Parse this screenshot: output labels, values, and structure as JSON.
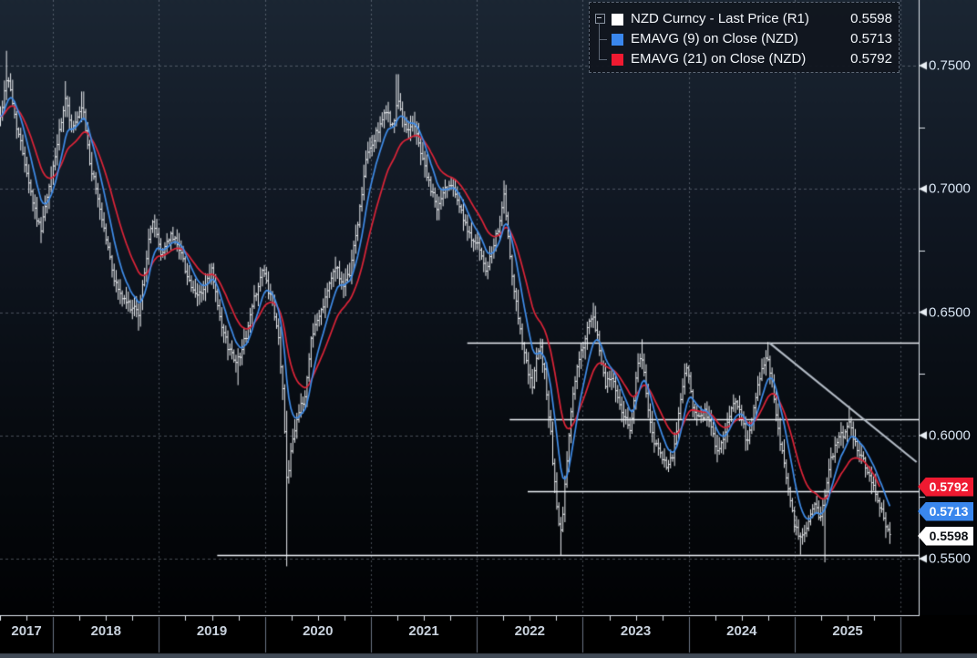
{
  "legend": {
    "items": [
      {
        "label": "NZD Curncy - Last Price (R1)",
        "value": "0.5598",
        "swatch_color": "#ffffff"
      },
      {
        "label": "EMAVG (9)  on Close (NZD)",
        "value": "0.5713",
        "swatch_color": "#3a87ed"
      },
      {
        "label": "EMAVG (21)  on Close (NZD)",
        "value": "0.5792",
        "swatch_color": "#ef1a31"
      }
    ]
  },
  "y_axis": {
    "side": "right",
    "ticks": [
      {
        "label": "0.7500",
        "value": 0.75
      },
      {
        "label": "0.7000",
        "value": 0.7
      },
      {
        "label": "0.6500",
        "value": 0.65
      },
      {
        "label": "0.6000",
        "value": 0.6
      },
      {
        "label": "0.5500",
        "value": 0.55
      }
    ],
    "minor_ticks": [
      0.725,
      0.675,
      0.625,
      0.575
    ]
  },
  "x_axis": {
    "year_labels": [
      "2017",
      "2018",
      "2019",
      "2020",
      "2021",
      "2022",
      "2023",
      "2024",
      "2025"
    ]
  },
  "price_badges": [
    {
      "text": "0.5792",
      "value": 0.5792,
      "bg": "#ef1a31",
      "fg": "#ffffff"
    },
    {
      "text": "0.5713",
      "value": 0.5713,
      "bg": "#3a87ed",
      "fg": "#ffffff"
    },
    {
      "text": "0.5598",
      "value": 0.5598,
      "bg": "#ffffff",
      "fg": "#0b0f14"
    }
  ],
  "colors": {
    "bg_top": "#1b2633",
    "bg_mid": "#101722",
    "bg_low": "#070b10",
    "bg_bottom": "#010204",
    "grid": "rgba(152,162,176,0.45)",
    "bars": "rgba(246,248,251,0.96)",
    "ema9": "#3f8ce8",
    "ema21": "#dd2438",
    "frame": "#dfe5ec",
    "annotation_line": "#eef2f7",
    "trendline": "#b2bac4",
    "band_divider": "#6b7584",
    "bottom_strip": "#414a56"
  },
  "chart_data": {
    "type": "line",
    "subtype": "weekly_ohlc_bars_with_emas",
    "title": "NZD Curncy - Last Price",
    "instrument": "NZD Curncy",
    "legend_position": "top-right",
    "grid": true,
    "x_domain": [
      2017.5,
      2026.17
    ],
    "y_domain": [
      0.5271,
      0.7766
    ],
    "series": [
      {
        "name": "NZD Curncy - Last Price (R1)",
        "type": "ohlc-bars",
        "last": 0.5598
      },
      {
        "name": "EMAVG (9) on Close (NZD)",
        "type": "ema",
        "period": 9,
        "last": 0.5713
      },
      {
        "name": "EMAVG (21) on Close (NZD)",
        "type": "ema",
        "period": 21,
        "last": 0.5792
      }
    ],
    "price_anchors": [
      [
        2017.505,
        0.729
      ],
      [
        2017.57,
        0.747
      ],
      [
        2017.65,
        0.727
      ],
      [
        2017.73,
        0.712
      ],
      [
        2017.81,
        0.695
      ],
      [
        2017.88,
        0.683
      ],
      [
        2017.96,
        0.699
      ],
      [
        2018.04,
        0.718
      ],
      [
        2018.12,
        0.736
      ],
      [
        2018.18,
        0.724
      ],
      [
        2018.23,
        0.728
      ],
      [
        2018.28,
        0.733
      ],
      [
        2018.35,
        0.71
      ],
      [
        2018.42,
        0.697
      ],
      [
        2018.5,
        0.68
      ],
      [
        2018.58,
        0.663
      ],
      [
        2018.66,
        0.655
      ],
      [
        2018.74,
        0.652
      ],
      [
        2018.81,
        0.649
      ],
      [
        2018.88,
        0.672
      ],
      [
        2018.94,
        0.688
      ],
      [
        2019.02,
        0.673
      ],
      [
        2019.1,
        0.681
      ],
      [
        2019.18,
        0.678
      ],
      [
        2019.26,
        0.666
      ],
      [
        2019.34,
        0.656
      ],
      [
        2019.42,
        0.659
      ],
      [
        2019.5,
        0.667
      ],
      [
        2019.58,
        0.645
      ],
      [
        2019.66,
        0.635
      ],
      [
        2019.74,
        0.63
      ],
      [
        2019.82,
        0.64
      ],
      [
        2019.9,
        0.656
      ],
      [
        2019.98,
        0.667
      ],
      [
        2020.06,
        0.655
      ],
      [
        2020.13,
        0.639
      ],
      [
        2020.17,
        0.617
      ],
      [
        2020.21,
        0.58
      ],
      [
        2020.25,
        0.597
      ],
      [
        2020.31,
        0.608
      ],
      [
        2020.38,
        0.616
      ],
      [
        2020.44,
        0.641
      ],
      [
        2020.52,
        0.649
      ],
      [
        2020.6,
        0.661
      ],
      [
        2020.68,
        0.669
      ],
      [
        2020.74,
        0.659
      ],
      [
        2020.8,
        0.666
      ],
      [
        2020.88,
        0.687
      ],
      [
        2020.96,
        0.713
      ],
      [
        2021.04,
        0.721
      ],
      [
        2021.1,
        0.728
      ],
      [
        2021.16,
        0.731
      ],
      [
        2021.21,
        0.724
      ],
      [
        2021.25,
        0.736
      ],
      [
        2021.33,
        0.724
      ],
      [
        2021.4,
        0.727
      ],
      [
        2021.48,
        0.714
      ],
      [
        2021.56,
        0.7
      ],
      [
        2021.63,
        0.692
      ],
      [
        2021.7,
        0.7
      ],
      [
        2021.77,
        0.703
      ],
      [
        2021.85,
        0.691
      ],
      [
        2021.92,
        0.681
      ],
      [
        2022.0,
        0.679
      ],
      [
        2022.08,
        0.666
      ],
      [
        2022.16,
        0.676
      ],
      [
        2022.26,
        0.697
      ],
      [
        2022.33,
        0.664
      ],
      [
        2022.4,
        0.646
      ],
      [
        2022.46,
        0.631
      ],
      [
        2022.52,
        0.619
      ],
      [
        2022.59,
        0.637
      ],
      [
        2022.64,
        0.626
      ],
      [
        2022.7,
        0.599
      ],
      [
        2022.76,
        0.567
      ],
      [
        2022.8,
        0.56
      ],
      [
        2022.84,
        0.584
      ],
      [
        2022.89,
        0.611
      ],
      [
        2022.94,
        0.626
      ],
      [
        2023.0,
        0.636
      ],
      [
        2023.06,
        0.645
      ],
      [
        2023.1,
        0.647
      ],
      [
        2023.15,
        0.637
      ],
      [
        2023.21,
        0.621
      ],
      [
        2023.27,
        0.624
      ],
      [
        2023.33,
        0.616
      ],
      [
        2023.39,
        0.607
      ],
      [
        2023.45,
        0.603
      ],
      [
        2023.52,
        0.628
      ],
      [
        2023.56,
        0.632
      ],
      [
        2023.62,
        0.608
      ],
      [
        2023.68,
        0.597
      ],
      [
        2023.74,
        0.591
      ],
      [
        2023.8,
        0.586
      ],
      [
        2023.86,
        0.593
      ],
      [
        2023.92,
        0.614
      ],
      [
        2023.98,
        0.629
      ],
      [
        2024.04,
        0.611
      ],
      [
        2024.1,
        0.606
      ],
      [
        2024.16,
        0.61
      ],
      [
        2024.22,
        0.601
      ],
      [
        2024.28,
        0.593
      ],
      [
        2024.35,
        0.601
      ],
      [
        2024.42,
        0.614
      ],
      [
        2024.49,
        0.611
      ],
      [
        2024.55,
        0.596
      ],
      [
        2024.62,
        0.611
      ],
      [
        2024.68,
        0.626
      ],
      [
        2024.74,
        0.634
      ],
      [
        2024.8,
        0.617
      ],
      [
        2024.85,
        0.601
      ],
      [
        2024.9,
        0.589
      ],
      [
        2024.95,
        0.576
      ],
      [
        2025.0,
        0.563
      ],
      [
        2025.06,
        0.557
      ],
      [
        2025.12,
        0.564
      ],
      [
        2025.18,
        0.572
      ],
      [
        2025.24,
        0.567
      ],
      [
        2025.28,
        0.574
      ],
      [
        2025.34,
        0.59
      ],
      [
        2025.4,
        0.597
      ],
      [
        2025.46,
        0.601
      ],
      [
        2025.51,
        0.605
      ],
      [
        2025.56,
        0.598
      ],
      [
        2025.61,
        0.593
      ],
      [
        2025.66,
        0.589
      ],
      [
        2025.71,
        0.584
      ],
      [
        2025.76,
        0.578
      ],
      [
        2025.81,
        0.571
      ],
      [
        2025.86,
        0.564
      ],
      [
        2025.902,
        0.5598
      ]
    ],
    "wick_overrides": [
      {
        "t": 2017.57,
        "high": 0.756
      },
      {
        "t": 2017.88,
        "low": 0.678
      },
      {
        "t": 2018.12,
        "high": 0.7437
      },
      {
        "t": 2018.28,
        "high": 0.7395
      },
      {
        "t": 2018.81,
        "low": 0.6425
      },
      {
        "t": 2019.74,
        "low": 0.6204
      },
      {
        "t": 2020.21,
        "high": 0.61,
        "low": 0.5469
      },
      {
        "t": 2021.25,
        "high": 0.7465
      },
      {
        "t": 2022.26,
        "high": 0.7034
      },
      {
        "t": 2022.8,
        "low": 0.5512
      },
      {
        "t": 2023.1,
        "high": 0.6538
      },
      {
        "t": 2023.45,
        "low": 0.5985
      },
      {
        "t": 2023.56,
        "high": 0.639
      },
      {
        "t": 2024.74,
        "high": 0.6379
      },
      {
        "t": 2025.06,
        "low": 0.5516
      },
      {
        "t": 2025.28,
        "low": 0.5485
      },
      {
        "t": 2025.51,
        "high": 0.612
      },
      {
        "t": 2025.902,
        "low": 0.556
      }
    ],
    "annotations": {
      "hlines": [
        {
          "value": 0.6375,
          "t_start": 2021.91,
          "t_end": 2026.17
        },
        {
          "value": 0.6065,
          "t_start": 2022.31,
          "t_end": 2026.17
        },
        {
          "value": 0.5775,
          "t_start": 2022.48,
          "t_end": 2026.17
        },
        {
          "value": 0.5515,
          "t_start": 2019.55,
          "t_end": 2026.17
        }
      ],
      "trendline": {
        "t1": 2024.76,
        "v1": 0.6376,
        "t2": 2026.15,
        "v2": 0.5892
      }
    },
    "gridlines": {
      "h_values": [
        0.75,
        0.7,
        0.65,
        0.6,
        0.55
      ],
      "v_years": [
        2018,
        2019,
        2020,
        2021,
        2022,
        2023,
        2024,
        2025,
        2026
      ]
    }
  }
}
